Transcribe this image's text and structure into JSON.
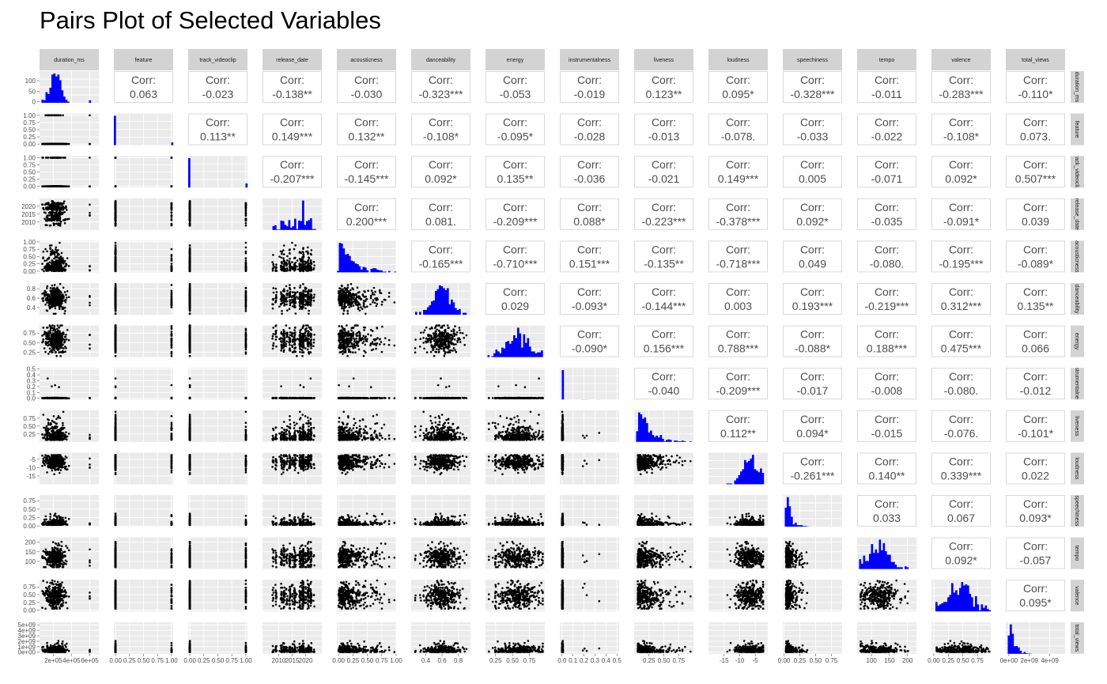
{
  "title": "Pairs Plot of Selected Variables",
  "colors": {
    "panel_bg": "#ebebeb",
    "grid": "#ffffff",
    "strip_bg": "#d3d3d3",
    "strip_text": "#1a1a1a",
    "points": "#000000",
    "hist_fill": "#0000ff",
    "corr_text": "#4d4d4d",
    "corr_border": "#d9d9d9",
    "tick_text": "#4d4d4d"
  },
  "chart_data": {
    "type": "pairs",
    "title": "Pairs Plot of Selected Variables",
    "variables": [
      "duration_ms",
      "feature",
      "track_videoclip",
      "release_date",
      "acousticness",
      "danceability",
      "energy",
      "instrumentalness",
      "liveness",
      "loudness",
      "speechiness",
      "tempo",
      "valence",
      "total_views"
    ],
    "upper_label": "Corr:",
    "correlations": [
      [
        "",
        "0.063",
        "-0.023",
        "-0.138**",
        "-0.030",
        "-0.323***",
        "-0.053",
        "-0.019",
        "0.123**",
        "0.095*",
        "-0.328***",
        "-0.011",
        "-0.283***",
        "-0.110*"
      ],
      [
        "",
        "",
        "0.113**",
        "0.149***",
        "0.132**",
        "-0.108*",
        "-0.095*",
        "-0.028",
        "-0.013",
        "-0.078.",
        "-0.033",
        "-0.022",
        "-0.108*",
        "0.073."
      ],
      [
        "",
        "",
        "",
        "-0.207***",
        "-0.145***",
        "0.092*",
        "0.135**",
        "-0.036",
        "-0.021",
        "0.149***",
        "0.005",
        "-0.071",
        "0.092*",
        "0.507***"
      ],
      [
        "",
        "",
        "",
        "",
        "0.200***",
        "0.081.",
        "-0.209***",
        "0.088*",
        "-0.223***",
        "-0.378***",
        "0.092*",
        "-0.035",
        "-0.091*",
        "0.039"
      ],
      [
        "",
        "",
        "",
        "",
        "",
        "-0.165***",
        "-0.710***",
        "0.151***",
        "-0.135**",
        "-0.718***",
        "0.049",
        "-0.080.",
        "-0.195***",
        "-0.089*"
      ],
      [
        "",
        "",
        "",
        "",
        "",
        "",
        "0.029",
        "-0.093*",
        "-0.144***",
        "0.003",
        "0.193***",
        "-0.219***",
        "0.312***",
        "0.135**"
      ],
      [
        "",
        "",
        "",
        "",
        "",
        "",
        "",
        "-0.090*",
        "0.156***",
        "0.788***",
        "-0.088*",
        "0.188***",
        "0.475***",
        "0.066"
      ],
      [
        "",
        "",
        "",
        "",
        "",
        "",
        "",
        "",
        "-0.040",
        "-0.209***",
        "-0.017",
        "-0.008",
        "-0.080.",
        "-0.012"
      ],
      [
        "",
        "",
        "",
        "",
        "",
        "",
        "",
        "",
        "",
        "0.112**",
        "0.094*",
        "-0.015",
        "-0.076.",
        "-0.101*"
      ],
      [
        "",
        "",
        "",
        "",
        "",
        "",
        "",
        "",
        "",
        "",
        "-0.261***",
        "0.140**",
        "0.339***",
        "0.022"
      ],
      [
        "",
        "",
        "",
        "",
        "",
        "",
        "",
        "",
        "",
        "",
        "",
        "0.033",
        "0.067",
        "0.093*"
      ],
      [
        "",
        "",
        "",
        "",
        "",
        "",
        "",
        "",
        "",
        "",
        "",
        "",
        "0.092*",
        "-0.057"
      ],
      [
        "",
        "",
        "",
        "",
        "",
        "",
        "",
        "",
        "",
        "",
        "",
        "",
        "",
        "0.095*"
      ],
      [
        "",
        "",
        "",
        "",
        "",
        "",
        "",
        "",
        "",
        "",
        "",
        "",
        "",
        ""
      ]
    ],
    "x_axes": [
      {
        "range": [
          50000,
          700000
        ],
        "ticks": [
          200000,
          400000,
          600000
        ],
        "labels": [
          "2e+05",
          "4e+05",
          "6e+05"
        ]
      },
      {
        "range": [
          -0.03,
          1.03
        ],
        "ticks": [
          0,
          0.25,
          0.5,
          0.75,
          1
        ],
        "labels": [
          "0.00",
          "0.25",
          "0.50",
          "0.75",
          "1.00"
        ]
      },
      {
        "range": [
          -0.03,
          1.03
        ],
        "ticks": [
          0,
          0.25,
          0.5,
          0.75,
          1
        ],
        "labels": [
          "0.00",
          "0.25",
          "0.50",
          "0.75",
          "1.00"
        ]
      },
      {
        "range": [
          2004,
          2026
        ],
        "ticks": [
          2010,
          2015,
          2020
        ],
        "labels": [
          "2010",
          "2015",
          "2020"
        ]
      },
      {
        "range": [
          -0.03,
          1.0
        ],
        "ticks": [
          0,
          0.25,
          0.5,
          0.75,
          1
        ],
        "labels": [
          "0.00",
          "0.25",
          "0.50",
          "0.75",
          "1.00"
        ]
      },
      {
        "range": [
          0.22,
          0.95
        ],
        "ticks": [
          0.4,
          0.6,
          0.8
        ],
        "labels": [
          "0.4",
          "0.6",
          "0.8"
        ]
      },
      {
        "range": [
          0.1,
          0.98
        ],
        "ticks": [
          0.25,
          0.5,
          0.75
        ],
        "labels": [
          "0.25",
          "0.50",
          "0.75"
        ]
      },
      {
        "range": [
          -0.02,
          0.52
        ],
        "ticks": [
          0,
          0.1,
          0.2,
          0.3,
          0.4,
          0.5
        ],
        "labels": [
          "0.0",
          "0.1",
          "0.2",
          "0.3",
          "0.4",
          "0.5"
        ]
      },
      {
        "range": [
          0.0,
          1.0
        ],
        "ticks": [
          0.25,
          0.5,
          0.75
        ],
        "labels": [
          "0.25",
          "0.50",
          "0.75"
        ]
      },
      {
        "range": [
          -20,
          -1
        ],
        "ticks": [
          -15,
          -10,
          -5
        ],
        "labels": [
          "-15",
          "-10",
          "-5"
        ]
      },
      {
        "range": [
          -0.02,
          0.92
        ],
        "ticks": [
          0,
          0.25,
          0.5,
          0.75
        ],
        "labels": [
          "0.00",
          "0.25",
          "0.50",
          "0.75"
        ]
      },
      {
        "range": [
          60,
          225
        ],
        "ticks": [
          100,
          150,
          200
        ],
        "labels": [
          "100",
          "150",
          "200"
        ]
      },
      {
        "range": [
          -0.04,
          0.98
        ],
        "ticks": [
          0,
          0.25,
          0.5,
          0.75
        ],
        "labels": [
          "0.00",
          "0.25",
          "0.50",
          "0.75"
        ]
      },
      {
        "range": [
          -300000000,
          5500000000
        ],
        "ticks": [
          0,
          2000000000,
          4000000000
        ],
        "labels": [
          "0e+00",
          "2e+09",
          "4e+09"
        ]
      }
    ],
    "y_axes": [
      {
        "range": [
          -5,
          145
        ],
        "ticks": [
          0,
          50,
          100
        ],
        "labels": [
          "0",
          "50",
          "100"
        ]
      },
      {
        "range": [
          -0.04,
          1.06
        ],
        "ticks": [
          0,
          0.25,
          0.5,
          0.75,
          1
        ],
        "labels": [
          "0.00",
          "0.25",
          "0.50",
          "0.75",
          "1.00"
        ]
      },
      {
        "range": [
          -0.04,
          1.06
        ],
        "ticks": [
          0,
          0.25,
          0.5,
          0.75,
          1
        ],
        "labels": [
          "0.00",
          "0.25",
          "0.50",
          "0.75",
          "1.00"
        ]
      },
      {
        "range": [
          2005,
          2025
        ],
        "ticks": [
          2010,
          2015,
          2020
        ],
        "labels": [
          "2010",
          "2015",
          "2020"
        ]
      },
      {
        "range": [
          -0.04,
          1.04
        ],
        "ticks": [
          0,
          0.25,
          0.5,
          0.75,
          1
        ],
        "labels": [
          "0.00",
          "0.25",
          "0.50",
          "0.75",
          "1.00"
        ]
      },
      {
        "range": [
          0.25,
          0.92
        ],
        "ticks": [
          0.4,
          0.6,
          0.8
        ],
        "labels": [
          "0.4",
          "0.6",
          "0.8"
        ]
      },
      {
        "range": [
          0.12,
          0.95
        ],
        "ticks": [
          0.25,
          0.5,
          0.75
        ],
        "labels": [
          "0.25",
          "0.50",
          "0.75"
        ]
      },
      {
        "range": [
          -0.02,
          0.52
        ],
        "ticks": [
          0,
          0.1,
          0.2,
          0.3,
          0.4,
          0.5
        ],
        "labels": [
          "0.0",
          "0.1",
          "0.2",
          "0.3",
          "0.4",
          "0.5"
        ]
      },
      {
        "range": [
          0.0,
          1.0
        ],
        "ticks": [
          0.25,
          0.5,
          0.75
        ],
        "labels": [
          "0.25",
          "0.50",
          "0.75"
        ]
      },
      {
        "range": [
          -20,
          -1
        ],
        "ticks": [
          -15,
          -10,
          -5
        ],
        "labels": [
          "-15",
          "-10",
          "-5"
        ]
      },
      {
        "range": [
          -0.02,
          0.92
        ],
        "ticks": [
          0,
          0.25,
          0.5,
          0.75
        ],
        "labels": [
          "0.00",
          "0.25",
          "0.50",
          "0.75"
        ]
      },
      {
        "range": [
          60,
          225
        ],
        "ticks": [
          100,
          150,
          200
        ],
        "labels": [
          "100",
          "150",
          "200"
        ]
      },
      {
        "range": [
          -0.04,
          0.98
        ],
        "ticks": [
          0,
          0.25,
          0.5,
          0.75
        ],
        "labels": [
          "0.00",
          "0.25",
          "0.50",
          "0.75"
        ]
      },
      {
        "range": [
          -300000000,
          5500000000
        ],
        "ticks": [
          0,
          1000000000,
          2000000000,
          3000000000,
          4000000000,
          5000000000
        ],
        "labels": [
          "0e+00",
          "1e+09",
          "2e+09",
          "3e+09",
          "4e+09",
          "5e+09"
        ]
      }
    ],
    "marginals": [
      {
        "kind": "normal",
        "mean": 220000,
        "sd": 55000,
        "min": 80000,
        "max": 650000,
        "outliers": [
          600000
        ]
      },
      {
        "kind": "binary",
        "p": 0.08
      },
      {
        "kind": "binary",
        "p": 0.13
      },
      {
        "kind": "years",
        "values": [
          2008,
          2009,
          2010,
          2011,
          2012,
          2013,
          2014,
          2015,
          2016,
          2017,
          2018,
          2019,
          2020,
          2021,
          2022,
          2023
        ],
        "weights": [
          1,
          2,
          1,
          5,
          6,
          2,
          7,
          3,
          6,
          1,
          10,
          16,
          3,
          9,
          7,
          2
        ]
      },
      {
        "kind": "exp",
        "rate": 4.5,
        "min": 0,
        "max": 0.97
      },
      {
        "kind": "normal",
        "mean": 0.6,
        "sd": 0.11,
        "min": 0.27,
        "max": 0.9
      },
      {
        "kind": "normal",
        "mean": 0.58,
        "sd": 0.16,
        "min": 0.15,
        "max": 0.95
      },
      {
        "kind": "spike",
        "p": 0.985,
        "max": 0.5
      },
      {
        "kind": "exp",
        "rate": 6,
        "min": 0.03,
        "max": 0.95,
        "offset": 0.06
      },
      {
        "kind": "normal",
        "mean": -6.5,
        "sd": 2.5,
        "min": -18,
        "max": -2.5
      },
      {
        "kind": "exp",
        "rate": 18,
        "min": 0.02,
        "max": 0.85,
        "offset": 0.03
      },
      {
        "kind": "normal",
        "mean": 122,
        "sd": 28,
        "min": 70,
        "max": 205
      },
      {
        "kind": "normal",
        "mean": 0.45,
        "sd": 0.2,
        "min": 0.05,
        "max": 0.96
      },
      {
        "kind": "exp",
        "rate": 2.6e-09,
        "min": 0,
        "max": 5000000000,
        "offset": 10000000
      }
    ]
  }
}
